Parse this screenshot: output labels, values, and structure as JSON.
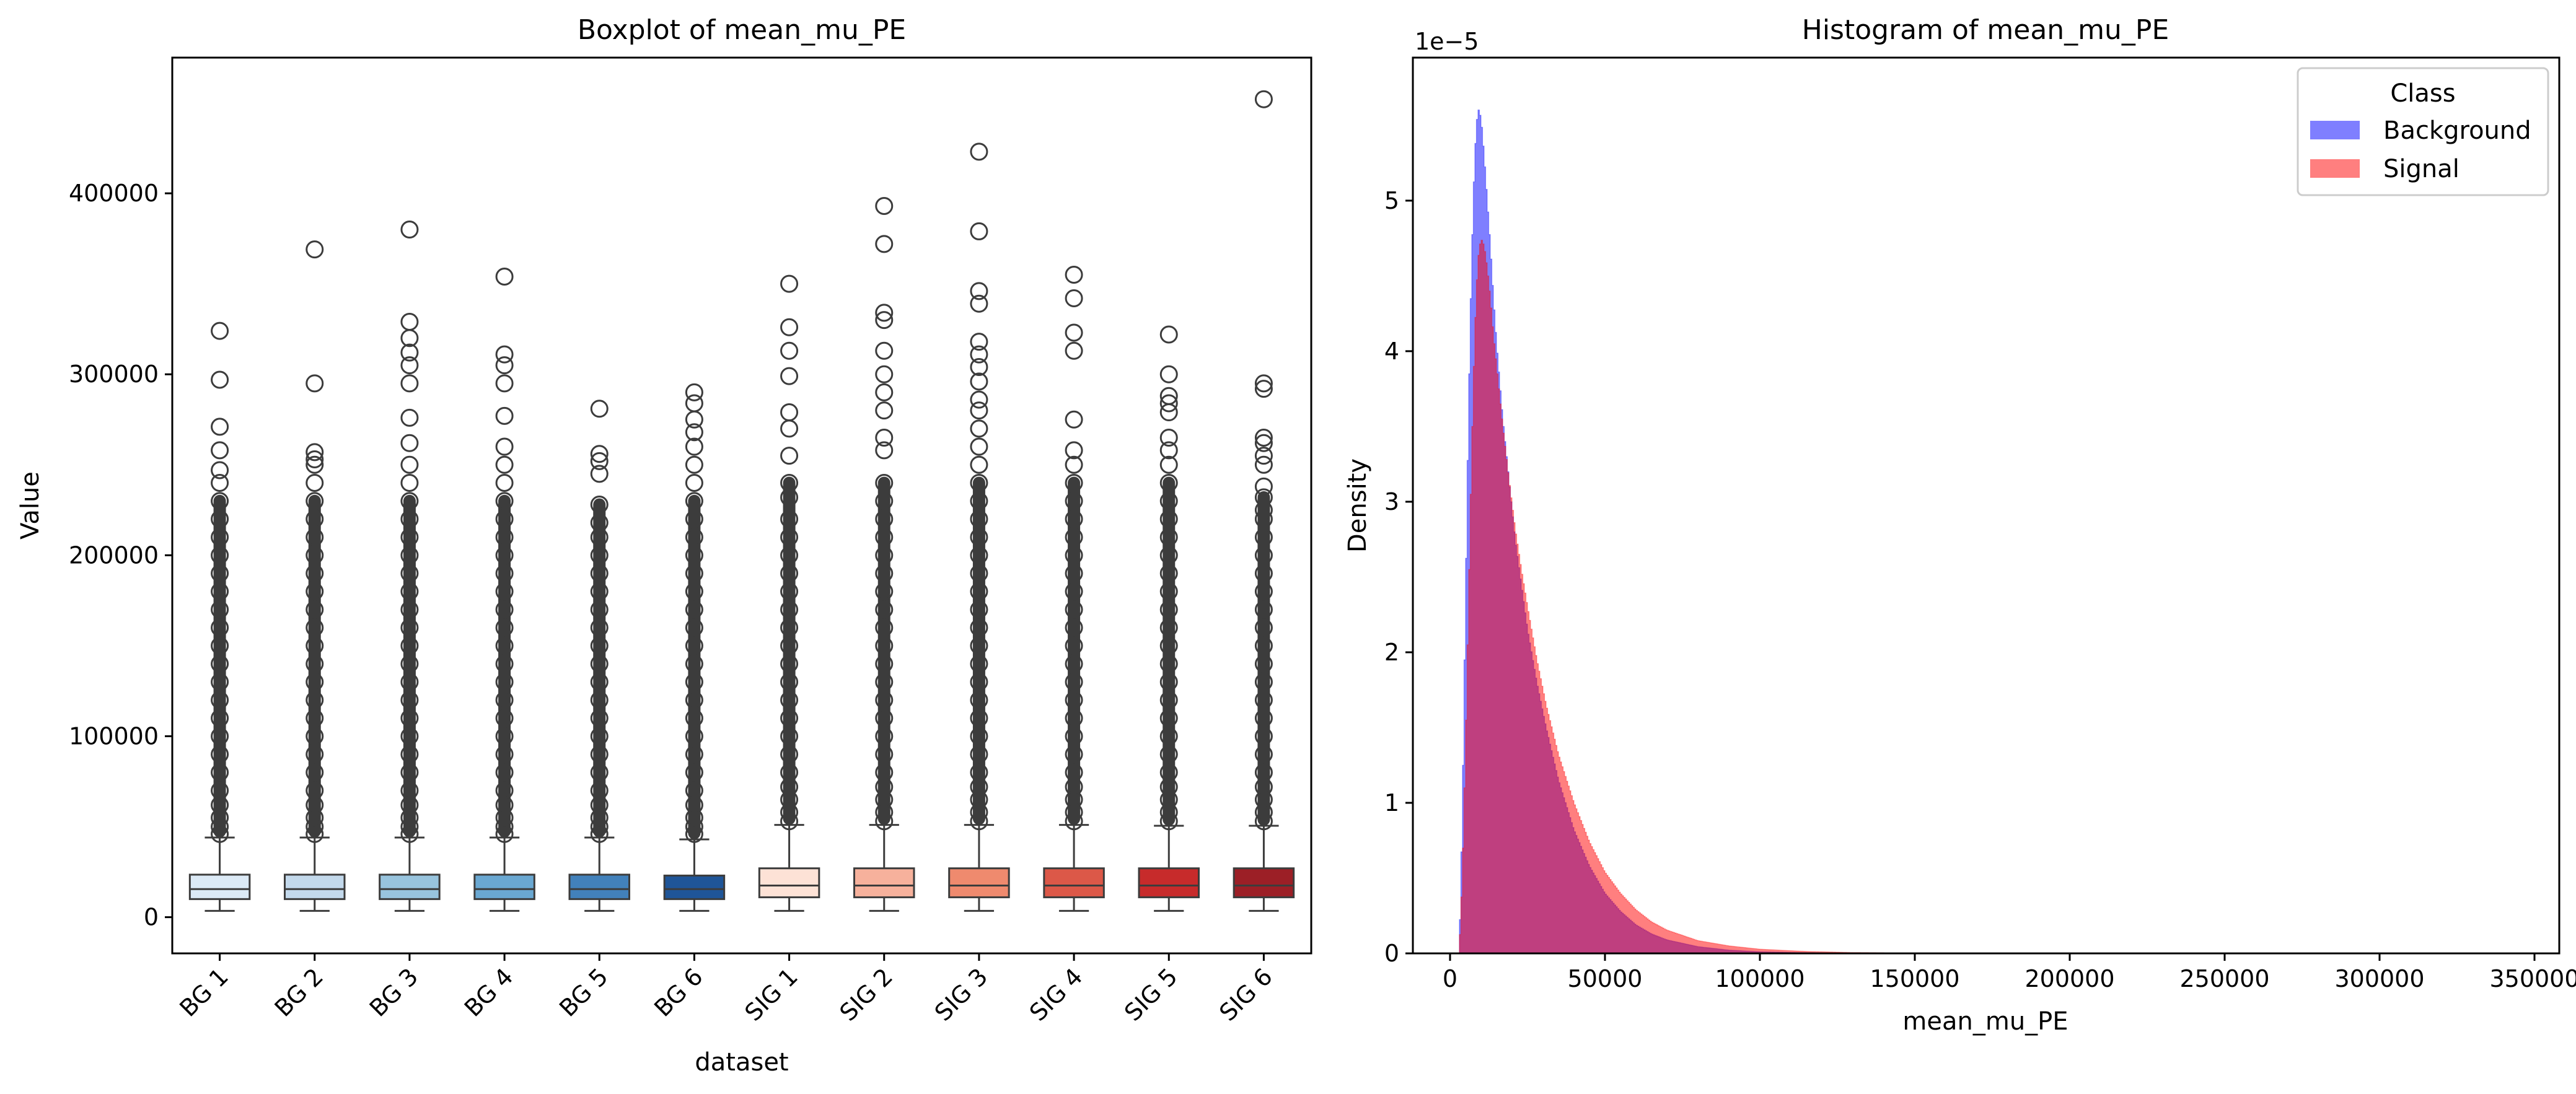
{
  "chart_data": [
    {
      "type": "box",
      "title": "Boxplot of mean_mu_PE",
      "xlabel": "dataset",
      "ylabel": "Value",
      "ylim": [
        -20000,
        475000
      ],
      "yticks": [
        0,
        100000,
        200000,
        300000,
        400000
      ],
      "categories": [
        "BG 1",
        "BG 2",
        "BG 3",
        "BG 4",
        "BG 5",
        "BG 6",
        "SIG 1",
        "SIG 2",
        "SIG 3",
        "SIG 4",
        "SIG 5",
        "SIG 6"
      ],
      "colors": [
        "#dceaf6",
        "#c3d9ec",
        "#98c4de",
        "#6aa8d2",
        "#4281bb",
        "#1f5598",
        "#fde2d6",
        "#f6b19c",
        "#ef8a6e",
        "#dc5848",
        "#c72b2b",
        "#9c1f26"
      ],
      "boxes": [
        {
          "whislo": 3500,
          "q1": 10000,
          "med": 15500,
          "q3": 23500,
          "whishi": 44000,
          "fliers": [
            46000,
            50000,
            55000,
            62000,
            70000,
            80000,
            90000,
            100000,
            110000,
            120000,
            130000,
            140000,
            150000,
            160000,
            170000,
            180000,
            190000,
            200000,
            210000,
            220000,
            230000,
            240000,
            247000,
            258000,
            271000,
            297000,
            324000
          ]
        },
        {
          "whislo": 3500,
          "q1": 10000,
          "med": 15500,
          "q3": 23500,
          "whishi": 44000,
          "fliers": [
            46000,
            50000,
            55000,
            62000,
            70000,
            80000,
            90000,
            100000,
            110000,
            120000,
            130000,
            140000,
            150000,
            160000,
            170000,
            180000,
            190000,
            200000,
            210000,
            220000,
            230000,
            240000,
            250000,
            253000,
            257000,
            295000,
            369000
          ]
        },
        {
          "whislo": 3500,
          "q1": 10000,
          "med": 15500,
          "q3": 23500,
          "whishi": 44000,
          "fliers": [
            46000,
            50000,
            55000,
            62000,
            70000,
            80000,
            90000,
            100000,
            110000,
            120000,
            130000,
            140000,
            150000,
            160000,
            170000,
            180000,
            190000,
            200000,
            210000,
            220000,
            230000,
            240000,
            250000,
            262000,
            276000,
            295000,
            305000,
            312000,
            320000,
            329000,
            380000
          ]
        },
        {
          "whislo": 3500,
          "q1": 10000,
          "med": 15500,
          "q3": 23500,
          "whishi": 44000,
          "fliers": [
            46000,
            50000,
            55000,
            62000,
            70000,
            80000,
            90000,
            100000,
            110000,
            120000,
            130000,
            140000,
            150000,
            160000,
            170000,
            180000,
            190000,
            200000,
            210000,
            220000,
            230000,
            240000,
            250000,
            260000,
            277000,
            295000,
            305000,
            311000,
            354000
          ]
        },
        {
          "whislo": 3500,
          "q1": 10000,
          "med": 15500,
          "q3": 23500,
          "whishi": 44000,
          "fliers": [
            46000,
            50000,
            55000,
            62000,
            70000,
            80000,
            90000,
            100000,
            110000,
            120000,
            130000,
            140000,
            150000,
            160000,
            170000,
            180000,
            190000,
            200000,
            210000,
            218000,
            228000,
            245000,
            252000,
            256000,
            281000
          ]
        },
        {
          "whislo": 3500,
          "q1": 10000,
          "med": 15500,
          "q3": 23000,
          "whishi": 43000,
          "fliers": [
            46000,
            50000,
            55000,
            62000,
            70000,
            80000,
            90000,
            100000,
            110000,
            120000,
            130000,
            140000,
            150000,
            160000,
            170000,
            180000,
            190000,
            200000,
            210000,
            220000,
            230000,
            240000,
            250000,
            260000,
            268000,
            275000,
            284000,
            290000
          ]
        },
        {
          "whislo": 3500,
          "q1": 11000,
          "med": 17500,
          "q3": 27000,
          "whishi": 51000,
          "fliers": [
            53000,
            58000,
            65000,
            72000,
            80000,
            90000,
            100000,
            110000,
            120000,
            130000,
            140000,
            150000,
            160000,
            170000,
            180000,
            190000,
            200000,
            210000,
            220000,
            232000,
            240000,
            255000,
            270000,
            279000,
            299000,
            313000,
            326000,
            350000
          ]
        },
        {
          "whislo": 3500,
          "q1": 11000,
          "med": 17500,
          "q3": 27000,
          "whishi": 51000,
          "fliers": [
            53000,
            58000,
            65000,
            72000,
            80000,
            90000,
            100000,
            110000,
            120000,
            130000,
            140000,
            150000,
            160000,
            170000,
            180000,
            190000,
            200000,
            210000,
            220000,
            230000,
            240000,
            258000,
            265000,
            280000,
            290000,
            300000,
            313000,
            330000,
            334000,
            372000,
            393000
          ]
        },
        {
          "whislo": 3500,
          "q1": 11000,
          "med": 17500,
          "q3": 27000,
          "whishi": 51000,
          "fliers": [
            53000,
            58000,
            65000,
            72000,
            80000,
            90000,
            100000,
            110000,
            120000,
            130000,
            140000,
            150000,
            160000,
            170000,
            180000,
            190000,
            200000,
            210000,
            220000,
            230000,
            240000,
            250000,
            260000,
            270000,
            280000,
            286000,
            296000,
            304000,
            311000,
            318000,
            339000,
            346000,
            379000,
            423000
          ]
        },
        {
          "whislo": 3500,
          "q1": 11000,
          "med": 17500,
          "q3": 27000,
          "whishi": 51000,
          "fliers": [
            53000,
            58000,
            65000,
            72000,
            80000,
            90000,
            100000,
            110000,
            120000,
            130000,
            140000,
            150000,
            160000,
            170000,
            180000,
            190000,
            200000,
            210000,
            220000,
            230000,
            240000,
            250000,
            258000,
            275000,
            313000,
            323000,
            342000,
            355000
          ]
        },
        {
          "whislo": 3500,
          "q1": 11000,
          "med": 17500,
          "q3": 27000,
          "whishi": 50500,
          "fliers": [
            53000,
            58000,
            65000,
            72000,
            80000,
            90000,
            100000,
            110000,
            120000,
            130000,
            140000,
            150000,
            160000,
            170000,
            180000,
            190000,
            200000,
            210000,
            220000,
            230000,
            240000,
            250000,
            258000,
            265000,
            279000,
            284000,
            288000,
            300000,
            322000
          ]
        },
        {
          "whislo": 3500,
          "q1": 11000,
          "med": 17500,
          "q3": 27000,
          "whishi": 50500,
          "fliers": [
            53000,
            58000,
            65000,
            72000,
            80000,
            90000,
            100000,
            110000,
            120000,
            130000,
            140000,
            150000,
            160000,
            170000,
            180000,
            190000,
            200000,
            210000,
            220000,
            225000,
            232000,
            238000,
            250000,
            255000,
            262000,
            265000,
            292000,
            295000,
            452000
          ]
        }
      ]
    },
    {
      "type": "histogram",
      "title": "Histogram of mean_mu_PE",
      "xlabel": "mean_mu_PE",
      "ylabel": "Density",
      "y_offset_text": "1e−5",
      "y_scale_factor": 1e-05,
      "xlim": [
        -12000,
        358000
      ],
      "ylim": [
        0,
        5.95
      ],
      "xticks": [
        0,
        50000,
        100000,
        150000,
        200000,
        250000,
        300000,
        350000
      ],
      "yticks": [
        0,
        1,
        2,
        3,
        4,
        5
      ],
      "legend": {
        "title": "Class",
        "position": "top-right"
      },
      "series": [
        {
          "name": "Background",
          "color": "#0000ff",
          "alpha": 0.5,
          "points": [
            [
              3000,
              0
            ],
            [
              4000,
              0.9
            ],
            [
              5000,
              2.3
            ],
            [
              6000,
              3.6
            ],
            [
              7000,
              4.6
            ],
            [
              8000,
              5.3
            ],
            [
              9000,
              5.62
            ],
            [
              10000,
              5.55
            ],
            [
              11000,
              5.3
            ],
            [
              12000,
              5.0
            ],
            [
              13000,
              4.7
            ],
            [
              14000,
              4.35
            ],
            [
              15000,
              4.05
            ],
            [
              17000,
              3.55
            ],
            [
              19000,
              3.15
            ],
            [
              21000,
              2.75
            ],
            [
              23000,
              2.45
            ],
            [
              25000,
              2.15
            ],
            [
              28000,
              1.8
            ],
            [
              31000,
              1.5
            ],
            [
              35000,
              1.15
            ],
            [
              40000,
              0.82
            ],
            [
              45000,
              0.58
            ],
            [
              50000,
              0.4
            ],
            [
              55000,
              0.28
            ],
            [
              60000,
              0.19
            ],
            [
              65000,
              0.13
            ],
            [
              70000,
              0.09
            ],
            [
              80000,
              0.045
            ],
            [
              90000,
              0.022
            ],
            [
              100000,
              0.011
            ],
            [
              115000,
              0.005
            ],
            [
              130000,
              0.002
            ],
            [
              150000,
              0.001
            ],
            [
              170000,
              0
            ]
          ]
        },
        {
          "name": "Signal",
          "color": "#ff0000",
          "alpha": 0.5,
          "points": [
            [
              3000,
              0
            ],
            [
              4000,
              0.5
            ],
            [
              5000,
              1.3
            ],
            [
              6000,
              2.3
            ],
            [
              7000,
              3.3
            ],
            [
              8000,
              4.1
            ],
            [
              9000,
              4.6
            ],
            [
              10000,
              4.75
            ],
            [
              11000,
              4.7
            ],
            [
              12000,
              4.55
            ],
            [
              13000,
              4.35
            ],
            [
              14000,
              4.1
            ],
            [
              15000,
              3.9
            ],
            [
              17000,
              3.5
            ],
            [
              19000,
              3.15
            ],
            [
              21000,
              2.82
            ],
            [
              23000,
              2.55
            ],
            [
              25000,
              2.3
            ],
            [
              28000,
              1.95
            ],
            [
              31000,
              1.65
            ],
            [
              35000,
              1.32
            ],
            [
              40000,
              1.0
            ],
            [
              45000,
              0.74
            ],
            [
              50000,
              0.54
            ],
            [
              55000,
              0.4
            ],
            [
              60000,
              0.29
            ],
            [
              65000,
              0.21
            ],
            [
              70000,
              0.155
            ],
            [
              80000,
              0.085
            ],
            [
              90000,
              0.05
            ],
            [
              100000,
              0.028
            ],
            [
              115000,
              0.013
            ],
            [
              130000,
              0.006
            ],
            [
              150000,
              0.002
            ],
            [
              170000,
              0
            ]
          ]
        }
      ]
    }
  ]
}
